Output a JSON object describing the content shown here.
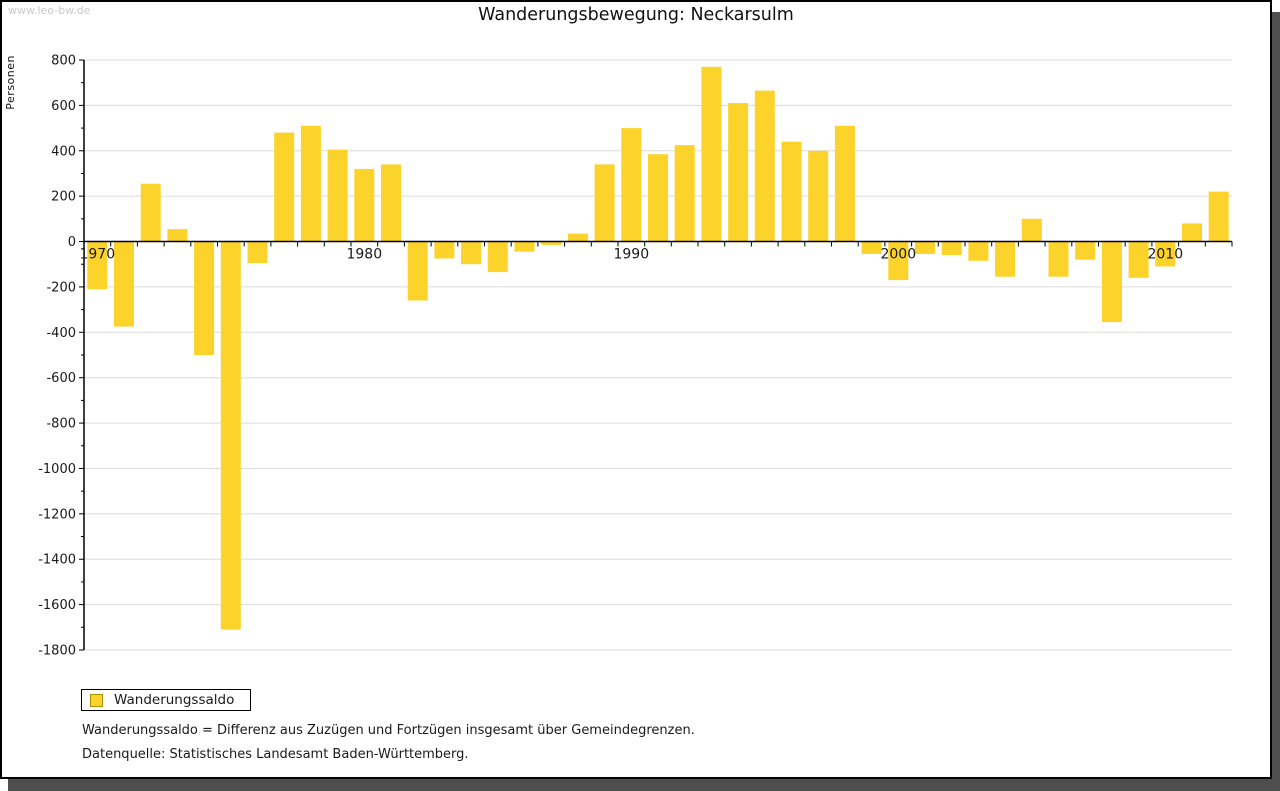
{
  "watermark": "www.leo-bw.de",
  "title": "Wanderungsbewegung: Neckarsulm",
  "legend": {
    "label": "Wanderungssaldo"
  },
  "footnotes": [
    "Wanderungssaldo = Differenz aus Zuzügen und Fortzügen insgesamt über Gemeindegrenzen.",
    "Datenquelle: Statistisches Landesamt Baden-Württemberg."
  ],
  "colors": {
    "bar": "#fcd32b",
    "bar_swatch_border": "#a39200",
    "grid": "#dcdcdc",
    "axis": "#000000",
    "frame_border": "#000000",
    "shadow": "#4e4e4e",
    "watermark": "#c9c9c9"
  },
  "chart_data": {
    "type": "bar",
    "title": "Wanderungsbewegung: Neckarsulm",
    "xlabel": "",
    "ylabel": "Personen",
    "ylim": [
      -1800,
      800
    ],
    "y_tick_step": 200,
    "y_minor_tick_step": 100,
    "grid": true,
    "legend_position": "bottom-left",
    "x_axis_labeled_years": [
      1970,
      1980,
      1990,
      2000,
      2010
    ],
    "series_name": "Wanderungssaldo",
    "categories": [
      1970,
      1971,
      1972,
      1973,
      1974,
      1975,
      1976,
      1977,
      1978,
      1979,
      1980,
      1981,
      1982,
      1983,
      1984,
      1985,
      1986,
      1987,
      1988,
      1989,
      1990,
      1991,
      1992,
      1993,
      1994,
      1995,
      1996,
      1997,
      1998,
      1999,
      2000,
      2001,
      2002,
      2003,
      2004,
      2005,
      2006,
      2007,
      2008,
      2009,
      2010,
      2011,
      2012
    ],
    "values": [
      -210,
      -375,
      255,
      55,
      -500,
      -1710,
      -95,
      480,
      510,
      405,
      320,
      340,
      -260,
      -75,
      -100,
      -135,
      -45,
      -15,
      35,
      340,
      500,
      385,
      425,
      770,
      610,
      665,
      440,
      400,
      510,
      -55,
      -170,
      -55,
      -60,
      -85,
      -155,
      100,
      -155,
      -80,
      -355,
      -160,
      -110,
      80,
      220
    ]
  }
}
